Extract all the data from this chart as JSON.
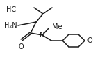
{
  "bg_color": "#ffffff",
  "line_color": "#1a1a1a",
  "text_color": "#1a1a1a",
  "line_width": 1.1,
  "font_size": 7.0,
  "figsize": [
    1.57,
    0.9
  ],
  "dpi": 100,
  "hcl": "HCl",
  "h2n": "H₂N",
  "o_label": "O",
  "n_label": "N",
  "me_label": "Me"
}
